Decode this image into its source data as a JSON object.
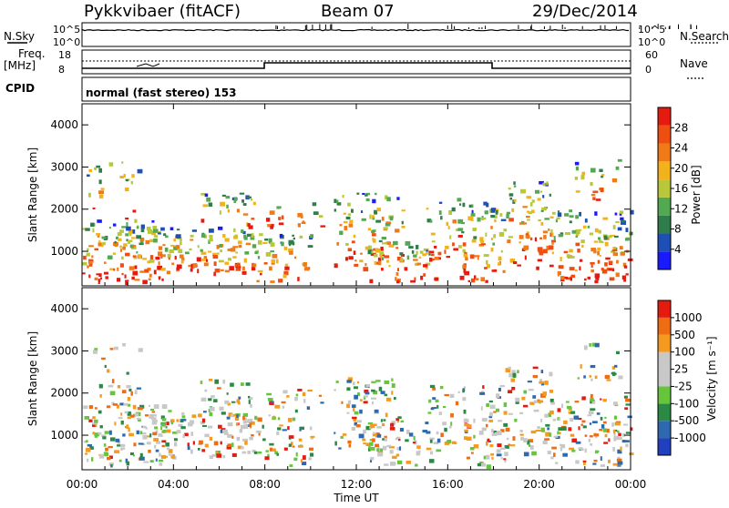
{
  "header": {
    "station": "Pykkvibaer (fitACF)",
    "beam": "Beam 07",
    "date": "29/Dec/2014"
  },
  "strip_panels": {
    "nsky_label": "N.Sky",
    "nsky_top": "10^5",
    "nsky_bottom": "10^0",
    "nsearch_label": "N.Search",
    "nsearch_top": "10^5",
    "nsearch_bottom": "10^0",
    "freq_label": "Freq.",
    "freq_unit": "[MHz]",
    "freq_top": "18",
    "freq_bottom": "8",
    "nave_label": "Nave",
    "nave_top": "60",
    "nave_bottom": "0",
    "cpid_label": "CPID",
    "cpid_text": "normal (fast stereo) 153"
  },
  "colors": {
    "power_scale": [
      "#1a1aff",
      "#1e4fb4",
      "#2e7d4a",
      "#53a852",
      "#b8c83a",
      "#f2b21b",
      "#f07a18",
      "#ee4f10",
      "#e51b10"
    ],
    "velocity_scale": [
      "#2040c0",
      "#2e69b0",
      "#2a8a44",
      "#66c43d",
      "#c8c8c8",
      "#c8c8c8",
      "#f39a1f",
      "#ef6d12",
      "#e51b10"
    ]
  },
  "chart_data": [
    {
      "type": "heatmap",
      "name": "power",
      "ylabel": "Slant Range [km]",
      "y_ticks": [
        1000,
        2000,
        3000,
        4000
      ],
      "ylim": [
        180,
        4500
      ],
      "x_ticks": [
        "00:00",
        "04:00",
        "08:00",
        "12:00",
        "16:00",
        "20:00",
        "00:00"
      ],
      "xlim_hours": [
        0,
        24
      ],
      "colorbar_label": "Power [dB]",
      "colorbar_ticks": [
        "28",
        "24",
        "20",
        "16",
        "12",
        "8",
        "4"
      ],
      "colorbar_range": [
        0,
        32
      ]
    },
    {
      "type": "heatmap",
      "name": "velocity",
      "ylabel": "Slant Range [km]",
      "y_ticks": [
        1000,
        2000,
        3000,
        4000
      ],
      "ylim": [
        180,
        4500
      ],
      "x_ticks": [
        "00:00",
        "04:00",
        "08:00",
        "12:00",
        "16:00",
        "20:00",
        "00:00"
      ],
      "xlabel": "Time UT",
      "xlim_hours": [
        0,
        24
      ],
      "colorbar_label": "Velocity [m s⁻¹]",
      "colorbar_ticks": [
        "1000",
        "500",
        "100",
        "25",
        "-25",
        "-100",
        "-500",
        "-1000"
      ]
    }
  ]
}
